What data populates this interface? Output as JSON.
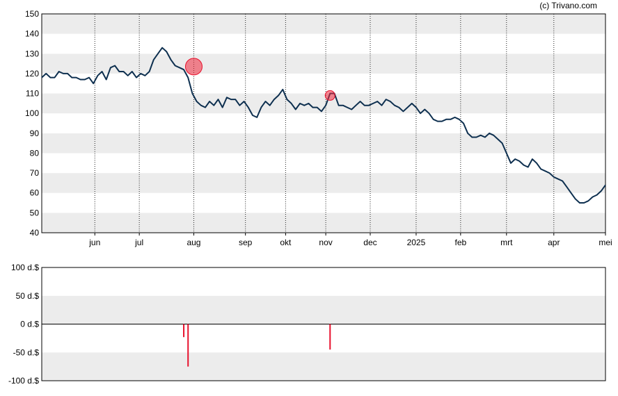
{
  "credit": "(c) Trivano.com",
  "chart_data": [
    {
      "type": "line",
      "ylim": [
        40,
        150
      ],
      "yticks": [
        40,
        50,
        60,
        70,
        80,
        90,
        100,
        110,
        120,
        130,
        140,
        150
      ],
      "x_month_ticks": [
        {
          "label": "jun",
          "pos": 37
        },
        {
          "label": "jul",
          "pos": 68
        },
        {
          "label": "aug",
          "pos": 106
        },
        {
          "label": "sep",
          "pos": 142
        },
        {
          "label": "okt",
          "pos": 170
        },
        {
          "label": "nov",
          "pos": 198
        },
        {
          "label": "dec",
          "pos": 229
        },
        {
          "label": "2025",
          "pos": 261
        },
        {
          "label": "feb",
          "pos": 292
        },
        {
          "label": "mrt",
          "pos": 324
        },
        {
          "label": "apr",
          "pos": 357
        },
        {
          "label": "mei",
          "pos": 393
        }
      ],
      "x_range": [
        0,
        393
      ],
      "series": [
        {
          "values": [
            [
              0,
              118
            ],
            [
              3,
              120
            ],
            [
              6,
              118
            ],
            [
              9,
              118
            ],
            [
              12,
              121
            ],
            [
              15,
              120
            ],
            [
              18,
              120
            ],
            [
              21,
              118
            ],
            [
              24,
              118
            ],
            [
              27,
              117
            ],
            [
              30,
              117
            ],
            [
              33,
              118
            ],
            [
              36,
              115
            ],
            [
              39,
              119
            ],
            [
              42,
              121
            ],
            [
              45,
              117
            ],
            [
              48,
              123
            ],
            [
              51,
              124
            ],
            [
              54,
              121
            ],
            [
              57,
              121
            ],
            [
              60,
              119
            ],
            [
              63,
              121
            ],
            [
              66,
              118
            ],
            [
              69,
              120
            ],
            [
              72,
              119
            ],
            [
              75,
              121
            ],
            [
              78,
              127
            ],
            [
              81,
              130
            ],
            [
              84,
              133
            ],
            [
              87,
              131
            ],
            [
              90,
              127
            ],
            [
              93,
              124
            ],
            [
              96,
              123
            ],
            [
              99,
              122
            ],
            [
              102,
              118
            ],
            [
              105,
              110
            ],
            [
              108,
              106
            ],
            [
              111,
              104
            ],
            [
              114,
              103
            ],
            [
              117,
              106
            ],
            [
              120,
              104
            ],
            [
              123,
              107
            ],
            [
              126,
              103
            ],
            [
              129,
              108
            ],
            [
              132,
              107
            ],
            [
              135,
              107
            ],
            [
              138,
              104
            ],
            [
              141,
              106
            ],
            [
              144,
              103
            ],
            [
              147,
              99
            ],
            [
              150,
              98
            ],
            [
              153,
              103
            ],
            [
              156,
              106
            ],
            [
              159,
              104
            ],
            [
              162,
              107
            ],
            [
              165,
              109
            ],
            [
              168,
              112
            ],
            [
              171,
              107
            ],
            [
              174,
              105
            ],
            [
              177,
              102
            ],
            [
              180,
              105
            ],
            [
              183,
              104
            ],
            [
              186,
              105
            ],
            [
              189,
              103
            ],
            [
              192,
              103
            ],
            [
              195,
              101
            ],
            [
              198,
              104
            ],
            [
              201,
              110
            ],
            [
              204,
              110
            ],
            [
              207,
              104
            ],
            [
              210,
              104
            ],
            [
              213,
              103
            ],
            [
              216,
              102
            ],
            [
              219,
              104
            ],
            [
              222,
              106
            ],
            [
              225,
              104
            ],
            [
              228,
              104
            ],
            [
              231,
              105
            ],
            [
              234,
              106
            ],
            [
              237,
              104
            ],
            [
              240,
              107
            ],
            [
              243,
              106
            ],
            [
              246,
              104
            ],
            [
              249,
              103
            ],
            [
              252,
              101
            ],
            [
              255,
              103
            ],
            [
              258,
              105
            ],
            [
              261,
              103
            ],
            [
              264,
              100
            ],
            [
              267,
              102
            ],
            [
              270,
              100
            ],
            [
              273,
              97
            ],
            [
              276,
              96
            ],
            [
              279,
              96
            ],
            [
              282,
              97
            ],
            [
              285,
              97
            ],
            [
              288,
              98
            ],
            [
              291,
              97
            ],
            [
              294,
              95
            ],
            [
              297,
              90
            ],
            [
              300,
              88
            ],
            [
              303,
              88
            ],
            [
              306,
              89
            ],
            [
              309,
              88
            ],
            [
              312,
              90
            ],
            [
              315,
              89
            ],
            [
              318,
              87
            ],
            [
              321,
              85
            ],
            [
              324,
              80
            ],
            [
              327,
              75
            ],
            [
              330,
              77
            ],
            [
              333,
              76
            ],
            [
              336,
              74
            ],
            [
              339,
              73
            ],
            [
              342,
              77
            ],
            [
              345,
              75
            ],
            [
              348,
              72
            ],
            [
              351,
              71
            ],
            [
              354,
              70
            ],
            [
              357,
              68
            ],
            [
              360,
              67
            ],
            [
              363,
              66
            ],
            [
              366,
              63
            ],
            [
              369,
              60
            ],
            [
              372,
              57
            ],
            [
              375,
              55
            ],
            [
              378,
              55
            ],
            [
              381,
              56
            ],
            [
              384,
              58
            ],
            [
              387,
              59
            ],
            [
              390,
              61
            ],
            [
              393,
              64
            ]
          ]
        }
      ],
      "markers": [
        {
          "x": 106,
          "y": 123.5,
          "kind": "sell-large"
        },
        {
          "x": 201,
          "y": 109,
          "kind": "sell-small"
        }
      ],
      "grid": true
    },
    {
      "type": "bar",
      "ylim": [
        -100,
        100
      ],
      "yticks": [
        -100,
        -50,
        0,
        50,
        100
      ],
      "ytick_labels": [
        "-100 d.$",
        "-50 d.$",
        "0 d.$",
        "50 d.$",
        "100 d.$"
      ],
      "x_range": [
        0,
        393
      ],
      "bars": [
        {
          "x": 99,
          "value": -23
        },
        {
          "x": 102,
          "value": -75
        },
        {
          "x": 201,
          "value": -45
        }
      ],
      "bar_color": "#e8112d"
    }
  ]
}
